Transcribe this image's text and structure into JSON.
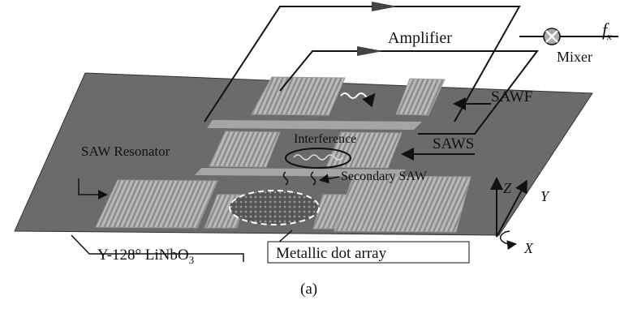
{
  "labels": {
    "amplifier": "Amplifier",
    "output": {
      "text": "f",
      "subscript": "x"
    },
    "mixer": "Mixer",
    "sawf": "SAWF",
    "interference": "Interference",
    "saws": "SAWS",
    "saw_resonator": "SAW Resonator",
    "secondary_saw": "Secondary SAW",
    "axis_z": "Z",
    "axis_y": "Y",
    "axis_x": "X",
    "substrate": {
      "text": "Y-128° LiNbO",
      "subscript": "3"
    },
    "dot_array": "Metallic dot array"
  },
  "caption": "(a)"
}
